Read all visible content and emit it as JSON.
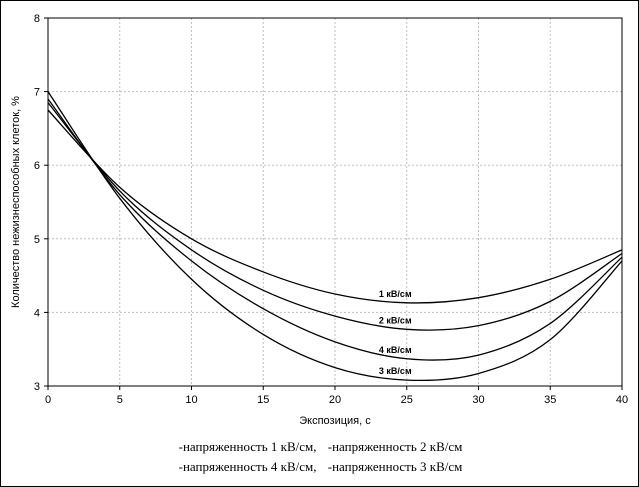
{
  "chart_data": {
    "type": "line",
    "xlabel": "Экспозиция,  с",
    "ylabel": "Количество нежизнеспособных клеток,  %",
    "xlim": [
      0,
      40
    ],
    "ylim": [
      3,
      8
    ],
    "xticks": [
      0,
      5,
      10,
      15,
      20,
      25,
      30,
      35,
      40
    ],
    "yticks": [
      3,
      4,
      5,
      6,
      7,
      8
    ],
    "grid": true,
    "series": [
      {
        "name": "1 кВ/см",
        "x": [
          0,
          5,
          10,
          15,
          20,
          25,
          30,
          35,
          40
        ],
        "y": [
          6.75,
          5.7,
          5.0,
          4.55,
          4.25,
          4.13,
          4.2,
          4.45,
          4.85
        ]
      },
      {
        "name": "2 кВ/см",
        "x": [
          0,
          5,
          10,
          15,
          20,
          25,
          30,
          35,
          40
        ],
        "y": [
          6.85,
          5.65,
          4.85,
          4.3,
          3.95,
          3.77,
          3.82,
          4.15,
          4.8
        ]
      },
      {
        "name": "4 кВ/см",
        "x": [
          0,
          5,
          10,
          15,
          20,
          25,
          30,
          35,
          40
        ],
        "y": [
          6.9,
          5.6,
          4.7,
          4.05,
          3.6,
          3.37,
          3.42,
          3.85,
          4.75
        ]
      },
      {
        "name": "3 кВ/см",
        "x": [
          0,
          5,
          10,
          15,
          20,
          25,
          30,
          35,
          40
        ],
        "y": [
          7.0,
          5.55,
          4.45,
          3.7,
          3.25,
          3.08,
          3.17,
          3.63,
          4.7
        ]
      }
    ],
    "legend": {
      "placement": "bottom",
      "entries": [
        "-напряженность 1 кВ/см,",
        "-напряженность 2 кВ/см",
        "-напряженность 4 кВ/см,",
        "-напряженность 3 кВ/см"
      ]
    },
    "colors": {
      "line": "#000000",
      "grid": "#bfbfbf"
    }
  }
}
